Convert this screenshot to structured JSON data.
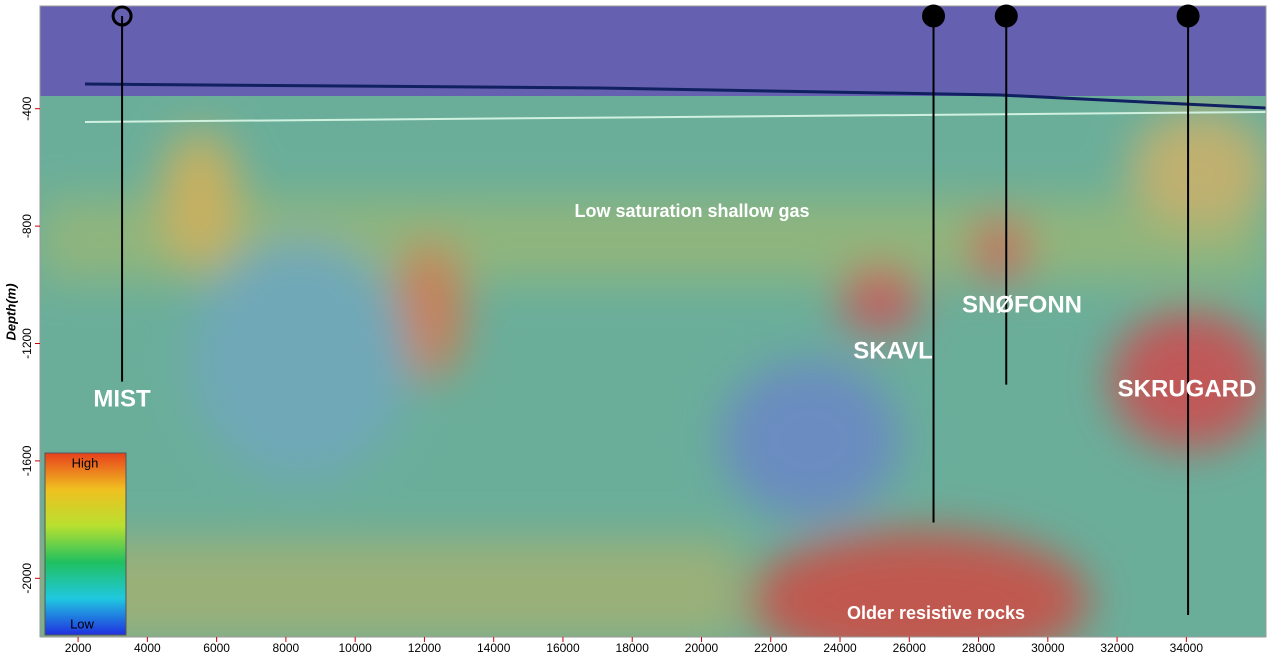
{
  "chart_data": {
    "type": "section",
    "y_label": "Depth(m)",
    "xlim": [
      900,
      36300
    ],
    "ylim": [
      -2200,
      -50
    ],
    "xticks": [
      2000,
      4000,
      6000,
      8000,
      10000,
      12000,
      14000,
      16000,
      18000,
      20000,
      22000,
      24000,
      26000,
      28000,
      30000,
      32000,
      34000
    ],
    "yticks": [
      -400,
      -800,
      -1200,
      -1600,
      -2000
    ],
    "wells": [
      {
        "name": "MIST",
        "x": 3270,
        "bottom": -1330,
        "marker": "open"
      },
      {
        "name": "SKAVL",
        "x": 26700,
        "bottom": -1810,
        "marker": "filled"
      },
      {
        "name": "SNØFONN",
        "x": 28800,
        "bottom": -1340,
        "marker": "filled"
      },
      {
        "name": "SKRUGARD",
        "x": 34050,
        "bottom": -2125,
        "marker": "filled"
      }
    ],
    "annotations": [
      "Low saturation shallow gas",
      "Older resistive rocks"
    ],
    "legend": {
      "high": "High",
      "low": "Low"
    }
  }
}
